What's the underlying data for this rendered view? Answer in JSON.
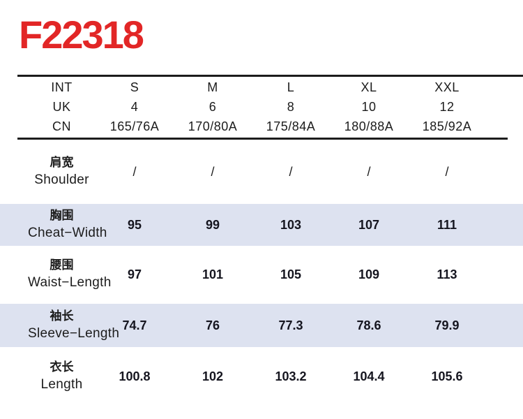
{
  "title": "F22318",
  "colors": {
    "accent_red": "#e22626",
    "highlight_band": "#dde2f0",
    "rule": "#1c1c1c",
    "text": "#1c1c1c"
  },
  "size_header": {
    "rows": [
      {
        "label": "INT",
        "values": [
          "S",
          "M",
          "L",
          "XL",
          "XXL"
        ]
      },
      {
        "label": "UK",
        "values": [
          "4",
          "6",
          "8",
          "10",
          "12"
        ]
      },
      {
        "label": "CN",
        "values": [
          "165/76A",
          "170/80A",
          "175/84A",
          "180/88A",
          "185/92A"
        ]
      }
    ]
  },
  "measurements": [
    {
      "label_cn": "肩宽",
      "label_en": "Shoulder",
      "highlighted": false,
      "values": [
        "/",
        "/",
        "/",
        "/",
        "/"
      ]
    },
    {
      "label_cn": "胸围",
      "label_en": "Cheat−Width",
      "highlighted": true,
      "values": [
        "95",
        "99",
        "103",
        "107",
        "111"
      ]
    },
    {
      "label_cn": "腰围",
      "label_en": "Waist−Length",
      "highlighted": false,
      "values": [
        "97",
        "101",
        "105",
        "109",
        "113"
      ]
    },
    {
      "label_cn": "袖长",
      "label_en": "Sleeve−Length",
      "highlighted": true,
      "values": [
        "74.7",
        "76",
        "77.3",
        "78.6",
        "79.9"
      ]
    },
    {
      "label_cn": "衣长",
      "label_en": "Length",
      "highlighted": false,
      "values": [
        "100.8",
        "102",
        "103.2",
        "104.4",
        "105.6"
      ]
    }
  ]
}
